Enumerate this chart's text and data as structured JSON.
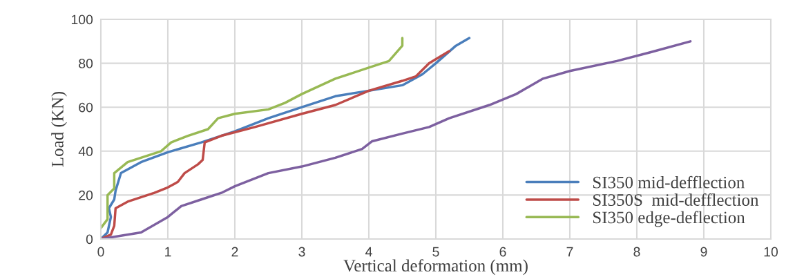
{
  "chart_data": {
    "type": "line",
    "xlabel": "Vertical deformation (mm)",
    "ylabel": "Load (KN)",
    "xlim": [
      0,
      10
    ],
    "xticks": [
      0,
      1,
      2,
      3,
      4,
      5,
      6,
      7,
      8,
      9,
      10
    ],
    "ylim": [
      0,
      100
    ],
    "yticks": [
      0,
      20,
      40,
      60,
      80,
      100
    ],
    "grid": true,
    "legend": "bottom right",
    "marker": "none",
    "line_style": "solid",
    "series": [
      {
        "name": "SI350 mid-defflection",
        "color": "#4a7ebb",
        "x": [
          0,
          0.1,
          0.15,
          0.12,
          0.2,
          0.22,
          0.3,
          0.6,
          1,
          1.5,
          2,
          2.5,
          3,
          3.5,
          4,
          4.5,
          4.8,
          5,
          5.3,
          5.5
        ],
        "values": [
          0,
          3,
          10,
          14,
          18,
          22,
          30,
          35,
          39.5,
          44,
          49,
          55,
          60,
          65,
          67.5,
          70,
          75,
          80,
          88,
          91.5
        ]
      },
      {
        "name": "SI350S  mid-defflection",
        "color": "#be4b48",
        "x": [
          0,
          0.15,
          0.2,
          0.22,
          0.4,
          0.8,
          1,
          1.15,
          1.25,
          1.45,
          1.52,
          1.55,
          1.8,
          2.3,
          3,
          3.5,
          4,
          4.5,
          4.7,
          4.9,
          5.2
        ],
        "values": [
          0,
          2,
          6,
          14,
          17,
          21,
          23.5,
          26,
          30,
          34,
          36,
          44,
          47,
          51,
          57,
          61,
          67.5,
          72,
          74,
          80,
          85.5
        ]
      },
      {
        "name": "SI350 edge-deflection",
        "color": "#98b954",
        "x": [
          0,
          0.1,
          0.1,
          0.2,
          0.2,
          0.4,
          0.9,
          1.05,
          1.3,
          1.6,
          1.75,
          2,
          2.5,
          2.75,
          3,
          3.5,
          4,
          4.3,
          4.5,
          4.5
        ],
        "values": [
          5,
          9,
          20,
          23,
          30,
          35,
          40,
          44,
          47,
          50,
          55,
          57,
          59,
          62,
          66,
          73,
          78,
          81,
          88,
          91.5
        ]
      },
      {
        "color": "#7d60a0",
        "x": [
          0,
          0.6,
          1,
          1.2,
          1.5,
          1.8,
          2,
          2.5,
          3,
          3.5,
          3.9,
          4.05,
          4.5,
          4.9,
          5.2,
          5.8,
          6.2,
          6.6,
          7,
          7.7,
          8.2,
          8.8
        ],
        "values": [
          0,
          3,
          10,
          15,
          18,
          21,
          24,
          30,
          33,
          37,
          41,
          44.5,
          48,
          51,
          55,
          61,
          66,
          73,
          76.5,
          81,
          85,
          90
        ]
      }
    ]
  }
}
